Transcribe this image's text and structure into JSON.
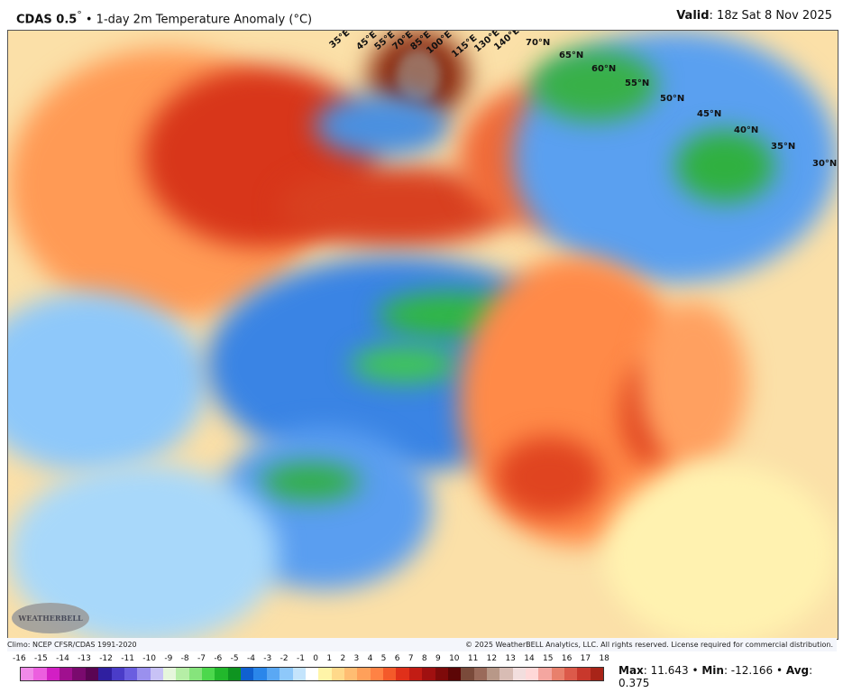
{
  "header": {
    "model": "CDAS 0.5",
    "degree": "°",
    "title": " • 1-day 2m Temperature Anomaly (°C)",
    "valid_label": "Valid",
    "valid_value": ": 18z Sat 8 Nov 2025"
  },
  "map": {
    "lat_labels": [
      "70°N",
      "65°N",
      "60°N",
      "55°N",
      "50°N",
      "45°N",
      "40°N",
      "35°N",
      "30°N"
    ],
    "lon_labels": [
      "35°E",
      "45°E",
      "55°E",
      "70°E",
      "85°E",
      "100°E",
      "115°E",
      "130°E",
      "140°E"
    ],
    "logo": "WeatherBELL"
  },
  "footer": {
    "climo": "Climo: NCEP CFSR/CDAS 1991-2020",
    "copyright": "© 2025 WeatherBELL Analytics, LLC. All rights reserved. License required for commercial distribution."
  },
  "colorbar": {
    "ticks": [
      "-16",
      "-15",
      "-14",
      "-13",
      "-12",
      "-11",
      "-10",
      "-9",
      "-8",
      "-7",
      "-6",
      "-5",
      "-4",
      "-3",
      "-2",
      "-1",
      "0",
      "1",
      "2",
      "3",
      "4",
      "5",
      "6",
      "7",
      "8",
      "9",
      "10",
      "11",
      "12",
      "13",
      "14",
      "15",
      "16",
      "17",
      "18"
    ],
    "colors": [
      "#f08ae8",
      "#ec5fdf",
      "#d21fc4",
      "#a0108f",
      "#7a0a6e",
      "#5a0553",
      "#2f1fa0",
      "#4a3cc8",
      "#6a5ee0",
      "#9a90ee",
      "#c8c2f6",
      "#e6f6dc",
      "#b6eea6",
      "#86e47c",
      "#4cd84c",
      "#22b82c",
      "#0e9420",
      "#1060d0",
      "#2a86ea",
      "#5aa8f4",
      "#8ec8fa",
      "#c4e4fc",
      "#ffffff",
      "#fff4a8",
      "#ffd98a",
      "#ffbd72",
      "#ffa05a",
      "#ff8244",
      "#f45a2a",
      "#e0301a",
      "#c21c14",
      "#a01010",
      "#7e0a0a",
      "#5c0606",
      "#7a4a3a",
      "#9a6a5a",
      "#b89888",
      "#d8bcb4",
      "#f2dede",
      "#ffd8d8",
      "#f4a6a0",
      "#e8806c",
      "#dc5a4a",
      "#c8382c",
      "#a82418"
    ]
  },
  "stats": {
    "max_label": "Max",
    "max_value": ": 11.643 • ",
    "min_label": "Min",
    "min_value": ": -12.166 • ",
    "avg_label": "Avg",
    "avg_value": ": 0.375"
  }
}
